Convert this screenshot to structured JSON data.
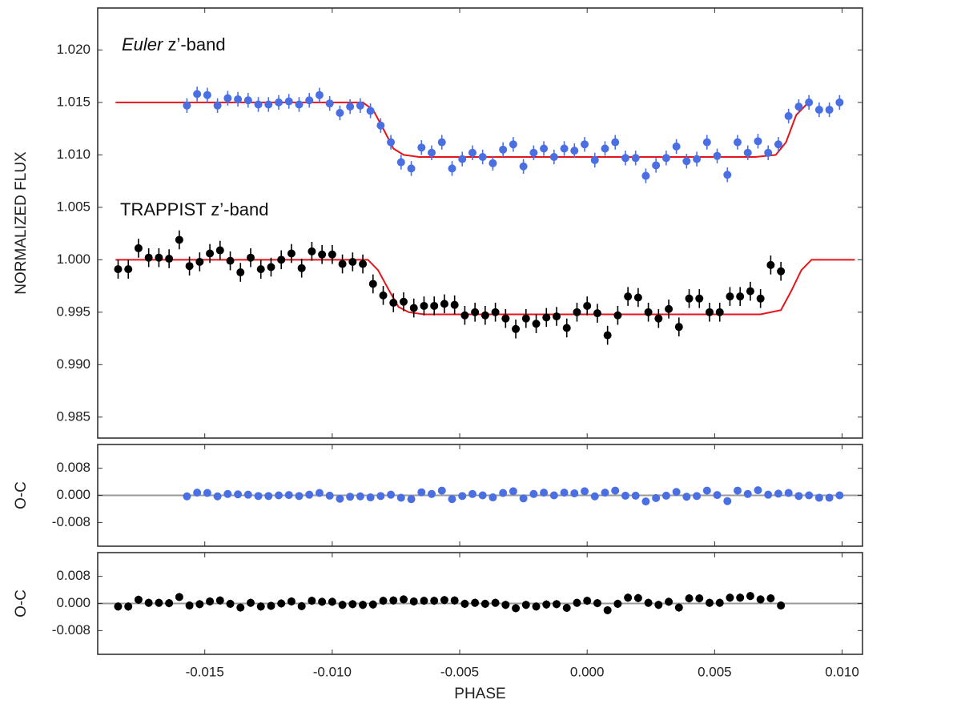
{
  "chart_data": [
    {
      "type": "scatter",
      "ylabel": "NORMALIZED FLUX",
      "annotations": [
        {
          "italic": "Euler",
          "text": " z’-band"
        },
        {
          "text": "TRAPPIST z’-band"
        }
      ],
      "xlim": [
        -0.0192,
        0.0108
      ],
      "ylim": [
        0.983,
        1.024
      ],
      "xticks": [
        -0.015,
        {
          "value": -0.01,
          "label": "-0.010"
        },
        -0.005,
        {
          "value": 0,
          "label": "0.000"
        },
        0.005,
        {
          "value": 0.01,
          "label": "0.010"
        }
      ],
      "yticks": [
        0.985,
        {
          "value": 0.99,
          "label": "0.990"
        },
        0.995,
        {
          "value": 1,
          "label": "1.000"
        },
        1.005,
        {
          "value": 1.01,
          "label": "1.010"
        },
        1.015,
        {
          "value": 1.02,
          "label": "1.020"
        }
      ],
      "series": [
        {
          "color": "#4a6fe3",
          "yerr": 0.0007,
          "x": [
            -0.0157,
            -0.0153,
            -0.0149,
            -0.0145,
            -0.0141,
            -0.0137,
            -0.0133,
            -0.0129,
            -0.0125,
            -0.0121,
            -0.0117,
            -0.0113,
            -0.0109,
            -0.0105,
            -0.0101,
            -0.0097,
            -0.0093,
            -0.0089,
            -0.0085,
            -0.0081,
            -0.0077,
            -0.0073,
            -0.0069,
            -0.0065,
            -0.0061,
            -0.0057,
            -0.0053,
            -0.0049,
            -0.0045,
            -0.0041,
            -0.0037,
            -0.0033,
            -0.0029,
            -0.0025,
            -0.0021,
            -0.0017,
            -0.0013,
            -0.0009,
            -0.0005,
            -0.0001,
            0.0003,
            0.0007,
            0.0011,
            0.0015,
            0.0019,
            0.0023,
            0.0027,
            0.0031,
            0.0035,
            0.0039,
            0.0043,
            0.0047,
            0.0051,
            0.0055,
            0.0059,
            0.0063,
            0.0067,
            0.0071,
            0.0075,
            0.0079,
            0.0083,
            0.0087,
            0.0091,
            0.0095,
            0.0099
          ],
          "values": [
            1.0147,
            1.0158,
            1.0157,
            1.0147,
            1.0154,
            1.0153,
            1.0152,
            1.0148,
            1.0148,
            1.015,
            1.0151,
            1.0148,
            1.0152,
            1.0157,
            1.0149,
            1.014,
            1.0146,
            1.0147,
            1.0142,
            1.0128,
            1.0112,
            1.0093,
            1.0087,
            1.0107,
            1.0102,
            1.0112,
            1.0087,
            1.0096,
            1.0102,
            1.0098,
            1.0092,
            1.0105,
            1.011,
            1.0089,
            1.0102,
            1.0106,
            1.0098,
            1.0106,
            1.0104,
            1.011,
            1.0095,
            1.0106,
            1.0112,
            1.0097,
            1.0097,
            1.008,
            1.009,
            1.0097,
            1.0108,
            1.0094,
            1.0096,
            1.0112,
            1.0099,
            1.0081,
            1.0112,
            1.0102,
            1.0113,
            1.0102,
            1.011,
            1.0137,
            1.0146,
            1.015,
            1.0143,
            1.0143,
            1.015
          ]
        },
        {
          "color": "#000000",
          "yerr": 0.0009,
          "x": [
            -0.0184,
            -0.018,
            -0.0176,
            -0.0172,
            -0.0168,
            -0.0164,
            -0.016,
            -0.0156,
            -0.0152,
            -0.0148,
            -0.0144,
            -0.014,
            -0.0136,
            -0.0132,
            -0.0128,
            -0.0124,
            -0.012,
            -0.0116,
            -0.0112,
            -0.0108,
            -0.0104,
            -0.01,
            -0.0096,
            -0.0092,
            -0.0088,
            -0.0084,
            -0.008,
            -0.0076,
            -0.0072,
            -0.0068,
            -0.0064,
            -0.006,
            -0.0056,
            -0.0052,
            -0.0048,
            -0.0044,
            -0.004,
            -0.0036,
            -0.0032,
            -0.0028,
            -0.0024,
            -0.002,
            -0.0016,
            -0.0012,
            -0.0008,
            -0.0004,
            0,
            0.0004,
            0.0008,
            0.0012,
            0.0016,
            0.002,
            0.0024,
            0.0028,
            0.0032,
            0.0036,
            0.004,
            0.0044,
            0.0048,
            0.0052,
            0.0056,
            0.006,
            0.0064,
            0.0068,
            0.0072,
            0.0076
          ],
          "values": [
            0.9991,
            0.9991,
            1.0011,
            1.0002,
            1.0002,
            1.0001,
            1.0019,
            0.9994,
            0.9998,
            1.0006,
            1.0009,
            0.9999,
            0.9988,
            1.0002,
            0.9991,
            0.9993,
            1,
            1.0006,
            0.9992,
            1.0008,
            1.0005,
            1.0005,
            0.9996,
            0.9998,
            0.9996,
            0.9977,
            0.9966,
            0.9959,
            0.996,
            0.9954,
            0.9956,
            0.9956,
            0.9958,
            0.9957,
            0.9947,
            0.995,
            0.9947,
            0.995,
            0.9944,
            0.9934,
            0.9944,
            0.9939,
            0.9945,
            0.9946,
            0.9935,
            0.995,
            0.9956,
            0.9949,
            0.9928,
            0.9947,
            0.9965,
            0.9964,
            0.995,
            0.9944,
            0.9953,
            0.9936,
            0.9963,
            0.9963,
            0.995,
            0.995,
            0.9965,
            0.9965,
            0.997,
            0.9963,
            0.9995,
            0.9989
          ]
        }
      ],
      "models": [
        {
          "color": "#e8141b",
          "x": [
            -0.0185,
            -0.0088,
            -0.0084,
            -0.008,
            -0.0076,
            -0.0072,
            -0.0066,
            0.0066,
            0.0074,
            0.0078,
            0.0082,
            0.0086
          ],
          "values": [
            1.015,
            1.015,
            1.0143,
            1.0125,
            1.0106,
            1.01,
            1.0098,
            1.0098,
            1.01,
            1.0112,
            1.0138,
            1.0148
          ]
        },
        {
          "color": "#e8141b",
          "x": [
            -0.0185,
            -0.0086,
            -0.0082,
            -0.0078,
            -0.0074,
            -0.007,
            -0.0064,
            0.0068,
            0.0076,
            0.008,
            0.0084,
            0.0088,
            0.0105
          ],
          "values": [
            1,
            1,
            0.999,
            0.9972,
            0.9955,
            0.995,
            0.9948,
            0.9948,
            0.9952,
            0.997,
            0.999,
            1,
            1
          ]
        }
      ]
    },
    {
      "type": "scatter",
      "ylabel": "O-C",
      "xlim": [
        -0.0192,
        0.0108
      ],
      "ylim": [
        -0.015,
        0.015
      ],
      "hline": 0,
      "xticks": [
        -0.015,
        -0.01,
        -0.005,
        0,
        0.005,
        0.01
      ],
      "yticks": [
        -0.008,
        {
          "value": 0,
          "label": "0.000"
        },
        0.008
      ],
      "series": [
        {
          "color": "#4a6fe3",
          "yerr": 0.0007,
          "x": [
            -0.0157,
            -0.0153,
            -0.0149,
            -0.0145,
            -0.0141,
            -0.0137,
            -0.0133,
            -0.0129,
            -0.0125,
            -0.0121,
            -0.0117,
            -0.0113,
            -0.0109,
            -0.0105,
            -0.0101,
            -0.0097,
            -0.0093,
            -0.0089,
            -0.0085,
            -0.0081,
            -0.0077,
            -0.0073,
            -0.0069,
            -0.0065,
            -0.0061,
            -0.0057,
            -0.0053,
            -0.0049,
            -0.0045,
            -0.0041,
            -0.0037,
            -0.0033,
            -0.0029,
            -0.0025,
            -0.0021,
            -0.0017,
            -0.0013,
            -0.0009,
            -0.0005,
            -0.0001,
            0.0003,
            0.0007,
            0.0011,
            0.0015,
            0.0019,
            0.0023,
            0.0027,
            0.0031,
            0.0035,
            0.0039,
            0.0043,
            0.0047,
            0.0051,
            0.0055,
            0.0059,
            0.0063,
            0.0067,
            0.0071,
            0.0075,
            0.0079,
            0.0083,
            0.0087,
            0.0091,
            0.0095,
            0.0099
          ],
          "values": [
            -0.0003,
            0.0008,
            0.0007,
            -0.0003,
            0.0004,
            0.0003,
            0.0002,
            -0.0002,
            -0.0002,
            0,
            0.0001,
            -0.0002,
            0.0002,
            0.0007,
            -0.0001,
            -0.001,
            -0.0004,
            -0.0003,
            -0.0006,
            -0.0002,
            0.0002,
            -0.0007,
            -0.0011,
            0.0009,
            0.0004,
            0.0014,
            -0.0011,
            -0.0002,
            0.0004,
            0,
            -0.0006,
            0.0007,
            0.0012,
            -0.0009,
            0.0004,
            0.0008,
            0,
            0.0008,
            0.0006,
            0.0012,
            -0.0003,
            0.0008,
            0.0014,
            -0.0001,
            -0.0001,
            -0.0018,
            -0.0008,
            -0.0001,
            0.001,
            -0.0004,
            -0.0002,
            0.0014,
            0.0001,
            -0.0017,
            0.0014,
            0.0004,
            0.0015,
            0.0002,
            0.0005,
            0.0007,
            -0.0002,
            0,
            -0.0007,
            -0.0007,
            0
          ]
        }
      ]
    },
    {
      "type": "scatter",
      "ylabel": "O-C",
      "xlabel": "PHASE",
      "xlim": [
        -0.0192,
        0.0108
      ],
      "ylim": [
        -0.015,
        0.015
      ],
      "hline": 0,
      "xticks": [
        -0.015,
        {
          "value": -0.01,
          "label": "-0.010"
        },
        -0.005,
        {
          "value": 0,
          "label": "0.000"
        },
        0.005,
        {
          "value": 0.01,
          "label": "0.010"
        }
      ],
      "yticks": [
        -0.008,
        {
          "value": 0,
          "label": "0.000"
        },
        0.008
      ],
      "series": [
        {
          "color": "#000000",
          "yerr": 0.0012,
          "x": [
            -0.0184,
            -0.018,
            -0.0176,
            -0.0172,
            -0.0168,
            -0.0164,
            -0.016,
            -0.0156,
            -0.0152,
            -0.0148,
            -0.0144,
            -0.014,
            -0.0136,
            -0.0132,
            -0.0128,
            -0.0124,
            -0.012,
            -0.0116,
            -0.0112,
            -0.0108,
            -0.0104,
            -0.01,
            -0.0096,
            -0.0092,
            -0.0088,
            -0.0084,
            -0.008,
            -0.0076,
            -0.0072,
            -0.0068,
            -0.0064,
            -0.006,
            -0.0056,
            -0.0052,
            -0.0048,
            -0.0044,
            -0.004,
            -0.0036,
            -0.0032,
            -0.0028,
            -0.0024,
            -0.002,
            -0.0016,
            -0.0012,
            -0.0008,
            -0.0004,
            0,
            0.0004,
            0.0008,
            0.0012,
            0.0016,
            0.002,
            0.0024,
            0.0028,
            0.0032,
            0.0036,
            0.004,
            0.0044,
            0.0048,
            0.0052,
            0.0056,
            0.006,
            0.0064,
            0.0068,
            0.0072,
            0.0076
          ],
          "values": [
            -0.0009,
            -0.0009,
            0.0011,
            0.0002,
            0.0002,
            0.0001,
            0.0019,
            -0.0006,
            -0.0002,
            0.0006,
            0.0009,
            -0.0001,
            -0.0012,
            0.0002,
            -0.0009,
            -0.0007,
            0,
            0.0006,
            -0.0008,
            0.0008,
            0.0005,
            0.0005,
            -0.0004,
            -0.0002,
            -0.0004,
            -0.0003,
            0.0008,
            0.0009,
            0.0012,
            0.0006,
            0.0008,
            0.0008,
            0.001,
            0.0009,
            -0.0001,
            0.0002,
            -0.0001,
            0.0002,
            -0.0004,
            -0.0014,
            -0.0004,
            -0.0009,
            -0.0003,
            -0.0002,
            -0.0013,
            0.0002,
            0.0008,
            0.0001,
            -0.002,
            -0.0001,
            0.0017,
            0.0016,
            0.0002,
            -0.0004,
            0.0005,
            -0.0012,
            0.0015,
            0.0015,
            0.0002,
            0.0002,
            0.0017,
            0.0017,
            0.0022,
            0.0012,
            0.0015,
            -0.0006
          ]
        }
      ]
    }
  ]
}
